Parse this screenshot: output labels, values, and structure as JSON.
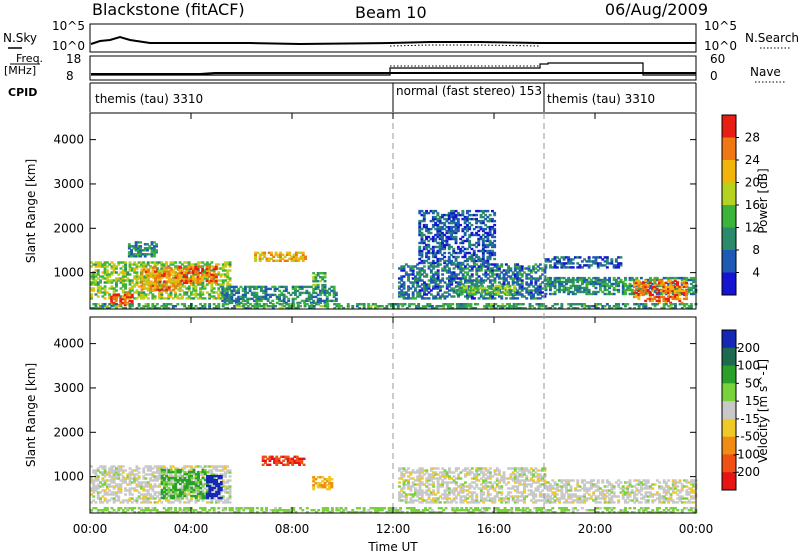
{
  "header": {
    "station": "Blackstone (fitACF)",
    "beam": "Beam 10",
    "date": "06/Aug/2009"
  },
  "summary": {
    "nsky_label": "N.Sky",
    "nsearch_label": "N.Search",
    "freq_label_top": "Freq.",
    "freq_label_unit": "[MHz]",
    "nave_label": "Nave",
    "cpid_label": "CPID",
    "noise_ticks": {
      "top": "10^5",
      "bottom": "10^0"
    },
    "freq_ticks": {
      "top": "18",
      "bottom": "8"
    },
    "nave_ticks": {
      "top": "60",
      "bottom": "0"
    },
    "cpid_segments": [
      {
        "label": "themis (tau) 3310",
        "start_hour": 0,
        "end_hour": 12
      },
      {
        "label": "normal (fast stereo) 153",
        "start_hour": 12,
        "end_hour": 18
      },
      {
        "label": "themis (tau) 3310",
        "start_hour": 18,
        "end_hour": 24
      }
    ]
  },
  "x_axis": {
    "label": "Time UT",
    "ticks": [
      "00:00",
      "04:00",
      "08:00",
      "12:00",
      "16:00",
      "20:00",
      "00:00"
    ],
    "tick_hours": [
      0,
      4,
      8,
      12,
      16,
      20,
      24
    ]
  },
  "chart_data": [
    {
      "type": "heatmap",
      "title": "Power",
      "ylabel": "Slant Range [km]",
      "xlabel": "",
      "xlim_hours": [
        0,
        24
      ],
      "ylim": [
        180,
        4600
      ],
      "y_ticks": [
        1000,
        2000,
        3000,
        4000
      ],
      "colorbar": {
        "label": "Power [dB]",
        "tick_labels": [
          "4",
          "8",
          "12",
          "16",
          "20",
          "24",
          "28"
        ],
        "tick_values": [
          4,
          8,
          12,
          16,
          20,
          24,
          28
        ],
        "range": [
          0,
          32
        ],
        "colors": [
          "#1414d2",
          "#1e5ab4",
          "#2a8a6a",
          "#3cb43c",
          "#b4d21e",
          "#f0b40a",
          "#f07814",
          "#e61e14"
        ]
      },
      "regions": [
        {
          "t0": 0.0,
          "t1": 5.5,
          "r0": 400,
          "r1": 1250,
          "value": 16
        },
        {
          "t0": 0.8,
          "t1": 1.7,
          "r0": 250,
          "r1": 550,
          "value": 28
        },
        {
          "t0": 2.0,
          "t1": 3.6,
          "r0": 600,
          "r1": 1100,
          "value": 24
        },
        {
          "t0": 3.5,
          "t1": 5.0,
          "r0": 750,
          "r1": 1150,
          "value": 26
        },
        {
          "t0": 1.5,
          "t1": 2.6,
          "r0": 1350,
          "r1": 1700,
          "value": 10
        },
        {
          "t0": 5.2,
          "t1": 9.7,
          "r0": 300,
          "r1": 700,
          "value": 10
        },
        {
          "t0": 6.5,
          "t1": 8.5,
          "r0": 1250,
          "r1": 1450,
          "value": 22
        },
        {
          "t0": 8.8,
          "t1": 9.3,
          "r0": 700,
          "r1": 1000,
          "value": 14
        },
        {
          "t0": 12.2,
          "t1": 18.0,
          "r0": 400,
          "r1": 1200,
          "value": 8
        },
        {
          "t0": 14.5,
          "t1": 16.8,
          "r0": 500,
          "r1": 700,
          "value": 15
        },
        {
          "t0": 13.0,
          "t1": 16.0,
          "r0": 1200,
          "r1": 2400,
          "value": 6
        },
        {
          "t0": 18.0,
          "t1": 24.0,
          "r0": 500,
          "r1": 900,
          "value": 10
        },
        {
          "t0": 18.0,
          "t1": 21.0,
          "r0": 1100,
          "r1": 1350,
          "value": 6
        },
        {
          "t0": 21.5,
          "t1": 23.6,
          "r0": 300,
          "r1": 800,
          "value": 26
        },
        {
          "t0": 0.0,
          "t1": 24.0,
          "r0": 180,
          "r1": 300,
          "value": 12
        }
      ]
    },
    {
      "type": "heatmap",
      "title": "Velocity",
      "ylabel": "Slant Range [km]",
      "xlabel": "Time UT",
      "xlim_hours": [
        0,
        24
      ],
      "ylim": [
        180,
        4600
      ],
      "y_ticks": [
        1000,
        2000,
        3000,
        4000
      ],
      "colorbar": {
        "label": "Velocity [m s^-1]",
        "tick_labels": [
          "200",
          "100",
          "50",
          "15",
          "-15",
          "-50",
          "-100",
          "-200"
        ],
        "tick_values": [
          200,
          100,
          50,
          15,
          -15,
          -50,
          -100,
          -200
        ],
        "colors": [
          "#1428b4",
          "#1e6a50",
          "#2aa02a",
          "#78d23c",
          "#c8c8c8",
          "#f0c828",
          "#f08c14",
          "#f05014",
          "#e61414"
        ]
      },
      "regions": [
        {
          "t0": 0.0,
          "t1": 5.5,
          "r0": 400,
          "r1": 1250,
          "value": 0
        },
        {
          "t0": 2.8,
          "t1": 4.6,
          "r0": 500,
          "r1": 1150,
          "value": 60
        },
        {
          "t0": 4.6,
          "t1": 5.2,
          "r0": 500,
          "r1": 1000,
          "value": 200
        },
        {
          "t0": 6.8,
          "t1": 8.5,
          "r0": 1250,
          "r1": 1450,
          "value": -200
        },
        {
          "t0": 8.8,
          "t1": 9.6,
          "r0": 700,
          "r1": 1000,
          "value": -50
        },
        {
          "t0": 12.2,
          "t1": 18.0,
          "r0": 400,
          "r1": 1200,
          "value": 0
        },
        {
          "t0": 18.0,
          "t1": 24.0,
          "r0": 400,
          "r1": 900,
          "value": 0
        },
        {
          "t0": 0.0,
          "t1": 24.0,
          "r0": 180,
          "r1": 300,
          "value": 30
        }
      ]
    }
  ]
}
